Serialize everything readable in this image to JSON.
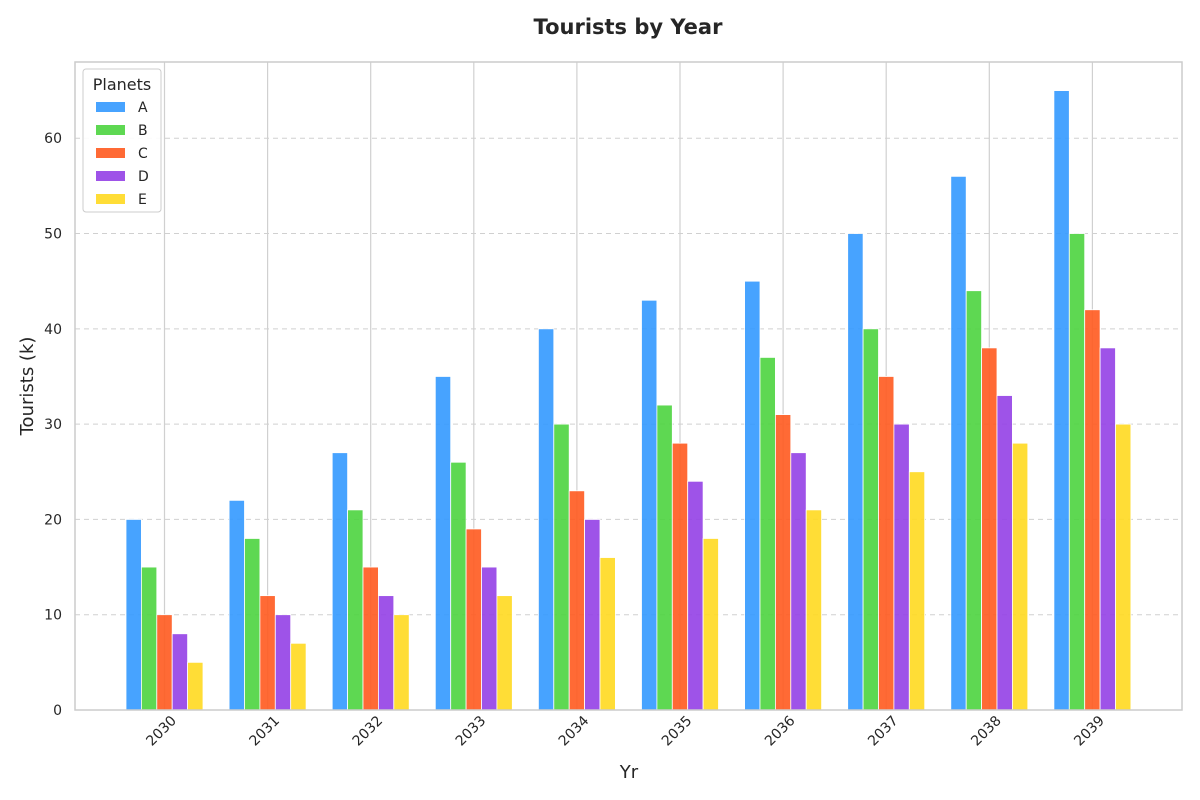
{
  "chart_data": {
    "type": "bar",
    "title": "Tourists by Year",
    "xlabel": "Yr",
    "ylabel": "Tourists (k)",
    "categories": [
      "2030",
      "2031",
      "2032",
      "2033",
      "2034",
      "2035",
      "2036",
      "2037",
      "2038",
      "2039"
    ],
    "ylim": [
      0,
      68
    ],
    "yticks": [
      0,
      10,
      20,
      30,
      40,
      50,
      60
    ],
    "grid": {
      "y": "dashed",
      "x": "solid"
    },
    "legend": {
      "title": "Planets",
      "placement": "top-left"
    },
    "series": [
      {
        "name": "A",
        "color": "#3399ff",
        "values": [
          20,
          22,
          27,
          35,
          40,
          43,
          45,
          50,
          56,
          65
        ]
      },
      {
        "name": "B",
        "color": "#4cd43f",
        "values": [
          15,
          18,
          21,
          26,
          30,
          32,
          37,
          40,
          44,
          50
        ]
      },
      {
        "name": "C",
        "color": "#ff5a1f",
        "values": [
          10,
          12,
          15,
          19,
          23,
          28,
          31,
          35,
          38,
          42
        ]
      },
      {
        "name": "D",
        "color": "#9440e6",
        "values": [
          8,
          10,
          12,
          15,
          20,
          24,
          27,
          30,
          33,
          38
        ]
      },
      {
        "name": "E",
        "color": "#ffd920",
        "values": [
          5,
          7,
          10,
          12,
          16,
          18,
          21,
          25,
          28,
          30
        ]
      }
    ]
  }
}
